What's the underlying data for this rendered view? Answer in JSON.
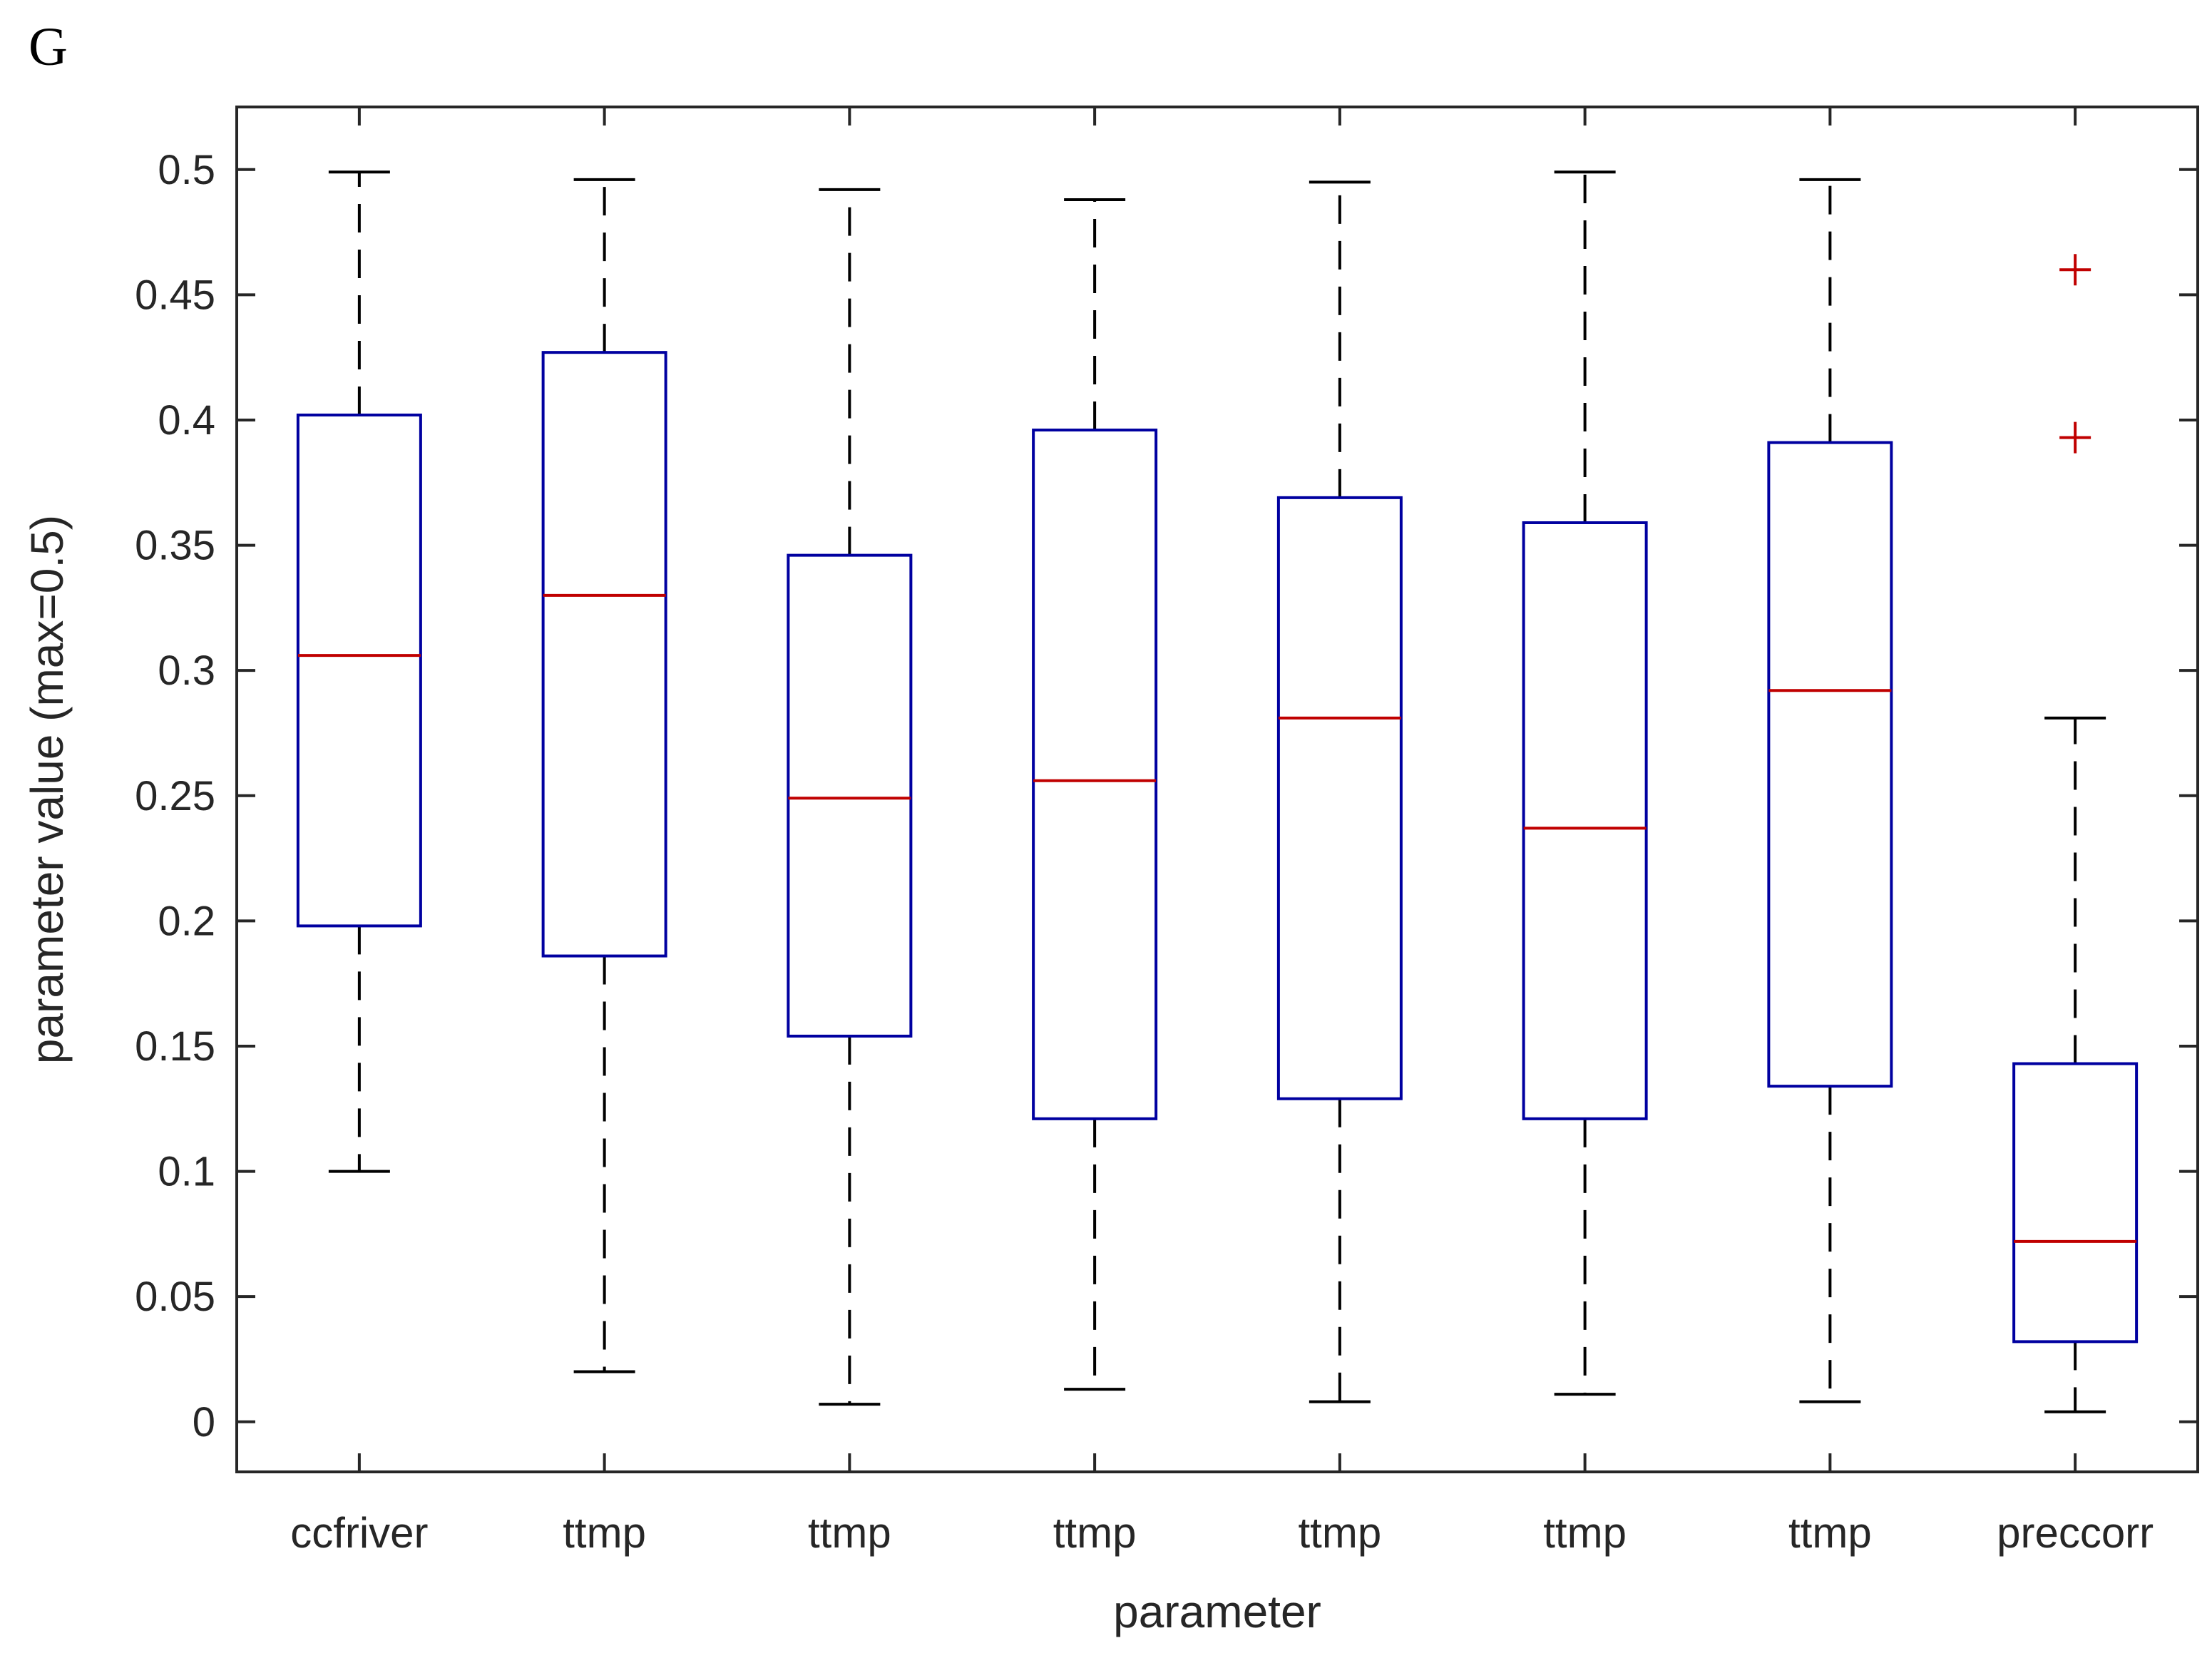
{
  "panel_label": "G",
  "chart_data": {
    "type": "box",
    "xlabel": "parameter",
    "ylabel": "parameter value (max=0.5)",
    "ylim": [
      -0.02,
      0.525
    ],
    "yticks": [
      0,
      0.05,
      0.1,
      0.15,
      0.2,
      0.25,
      0.3,
      0.35,
      0.4,
      0.45,
      0.5
    ],
    "ytick_labels": [
      "0",
      "0.05",
      "0.1",
      "0.15",
      "0.2",
      "0.25",
      "0.3",
      "0.35",
      "0.4",
      "0.45",
      "0.5"
    ],
    "grid": false,
    "colors": {
      "box": "#0000a0",
      "median": "#c00000",
      "whisker": "#000000",
      "outlier": "#c00000",
      "axes": "#262626"
    },
    "categories": [
      "ccfriver",
      "ttmp",
      "ttmp",
      "ttmp",
      "ttmp",
      "ttmp",
      "ttmp",
      "preccorr"
    ],
    "boxes": [
      {
        "min": 0.1,
        "q1": 0.198,
        "median": 0.306,
        "q3": 0.402,
        "max": 0.499,
        "outliers": []
      },
      {
        "min": 0.02,
        "q1": 0.186,
        "median": 0.33,
        "q3": 0.427,
        "max": 0.496,
        "outliers": []
      },
      {
        "min": 0.007,
        "q1": 0.154,
        "median": 0.249,
        "q3": 0.346,
        "max": 0.492,
        "outliers": []
      },
      {
        "min": 0.013,
        "q1": 0.121,
        "median": 0.256,
        "q3": 0.396,
        "max": 0.488,
        "outliers": []
      },
      {
        "min": 0.008,
        "q1": 0.129,
        "median": 0.281,
        "q3": 0.369,
        "max": 0.495,
        "outliers": []
      },
      {
        "min": 0.011,
        "q1": 0.121,
        "median": 0.237,
        "q3": 0.359,
        "max": 0.499,
        "outliers": []
      },
      {
        "min": 0.008,
        "q1": 0.134,
        "median": 0.292,
        "q3": 0.391,
        "max": 0.496,
        "outliers": []
      },
      {
        "min": 0.004,
        "q1": 0.032,
        "median": 0.072,
        "q3": 0.143,
        "max": 0.281,
        "outliers": [
          0.46,
          0.393
        ]
      }
    ]
  }
}
